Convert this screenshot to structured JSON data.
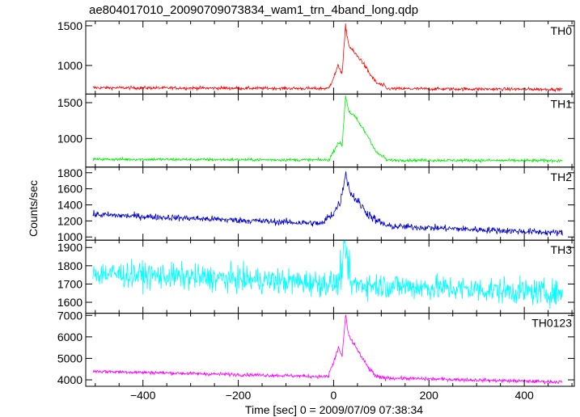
{
  "title": "ae804017010_20090709073834_wam1_trn_4band_long.qdp",
  "ylabel": "Counts/sec",
  "xlabel": "Time [sec] 0 = 2009/07/09 07:38:34",
  "xlim": [
    -520,
    505
  ],
  "xticks": [
    -400,
    -200,
    0,
    200,
    400
  ],
  "chart_data": {
    "type": "line",
    "x_range": [
      -505,
      480
    ],
    "series": [
      {
        "name": "TH0",
        "color": "#ff0000",
        "ylim": [
          640,
          1560
        ],
        "yticks": [
          1000,
          1500
        ],
        "base_start": 720,
        "base_end": 700,
        "noise": 20,
        "burst": [
          [
            -10,
            720
          ],
          [
            0,
            850
          ],
          [
            10,
            1000
          ],
          [
            18,
            900
          ],
          [
            25,
            1500
          ],
          [
            32,
            1250
          ],
          [
            45,
            1150
          ],
          [
            60,
            1050
          ],
          [
            75,
            900
          ],
          [
            90,
            780
          ],
          [
            110,
            730
          ]
        ]
      },
      {
        "name": "TH1",
        "color": "#00ee00",
        "ylim": [
          600,
          1620
        ],
        "yticks": [
          1000,
          1500
        ],
        "base_start": 710,
        "base_end": 690,
        "noise": 20,
        "burst": [
          [
            -10,
            700
          ],
          [
            0,
            820
          ],
          [
            10,
            950
          ],
          [
            18,
            900
          ],
          [
            25,
            1600
          ],
          [
            32,
            1380
          ],
          [
            45,
            1300
          ],
          [
            60,
            1150
          ],
          [
            75,
            1000
          ],
          [
            90,
            800
          ],
          [
            110,
            720
          ]
        ]
      },
      {
        "name": "TH2",
        "color": "#0000cc",
        "ylim": [
          960,
          1870
        ],
        "yticks": [
          1000,
          1200,
          1400,
          1600,
          1800
        ],
        "base_start": 1280,
        "base_end": 1050,
        "noise": 40,
        "burst": [
          [
            -20,
            1200
          ],
          [
            0,
            1300
          ],
          [
            15,
            1450
          ],
          [
            25,
            1800
          ],
          [
            35,
            1550
          ],
          [
            50,
            1450
          ],
          [
            70,
            1300
          ],
          [
            90,
            1200
          ],
          [
            110,
            1150
          ]
        ]
      },
      {
        "name": "TH3",
        "color": "#00ffff",
        "ylim": [
          1540,
          1940
        ],
        "yticks": [
          1600,
          1700,
          1800,
          1900
        ],
        "base_start": 1760,
        "base_end": 1650,
        "noise": 70,
        "burst": [
          [
            10,
            1700
          ],
          [
            25,
            1900
          ],
          [
            35,
            1720
          ]
        ]
      },
      {
        "name": "TH0123",
        "color": "#ff00ff",
        "ylim": [
          3700,
          7100
        ],
        "yticks": [
          4000,
          5000,
          6000,
          7000
        ],
        "base_start": 4400,
        "base_end": 3900,
        "noise": 80,
        "burst": [
          [
            -10,
            4300
          ],
          [
            0,
            4800
          ],
          [
            10,
            5500
          ],
          [
            18,
            5100
          ],
          [
            25,
            7000
          ],
          [
            32,
            6000
          ],
          [
            45,
            5600
          ],
          [
            60,
            5000
          ],
          [
            75,
            4500
          ],
          [
            90,
            4150
          ],
          [
            110,
            4000
          ]
        ]
      }
    ]
  }
}
